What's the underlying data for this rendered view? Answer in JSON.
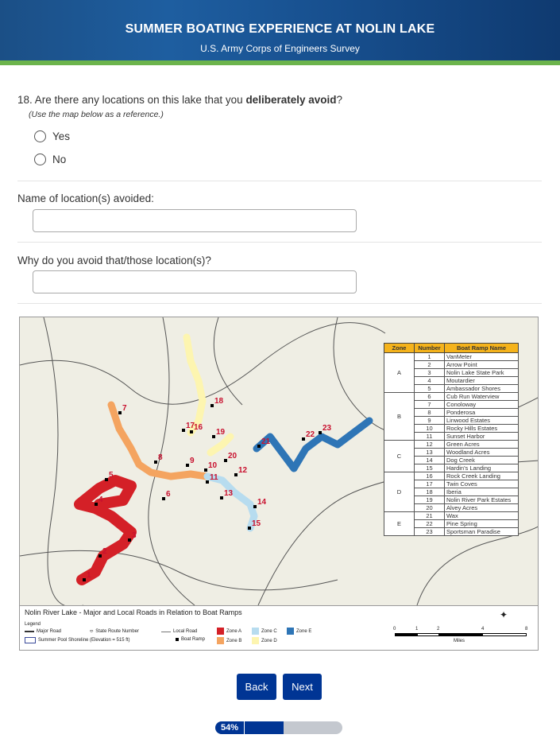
{
  "header": {
    "title": "SUMMER BOATING EXPERIENCE AT NOLIN LAKE",
    "subtitle": "U.S. Army Corps of Engineers Survey"
  },
  "question": {
    "prefix": "18. Are there any locations on this lake that you ",
    "bold": "deliberately avoid",
    "suffix": "?",
    "note": "(Use the map below as a reference.)",
    "options": [
      "Yes",
      "No"
    ]
  },
  "fields": {
    "name_label": "Name of location(s) avoided:",
    "why_label": "Why do you avoid that/those location(s)?",
    "name_value": "",
    "why_value": ""
  },
  "map": {
    "table_headers": [
      "Zone",
      "Number",
      "Boat Ramp Name"
    ],
    "zones": [
      {
        "zone": "A",
        "ramps": [
          [
            "1",
            "VanMeter"
          ],
          [
            "2",
            "Arrow Point"
          ],
          [
            "3",
            "Nolin Lake State Park"
          ],
          [
            "4",
            "Moutardier"
          ],
          [
            "5",
            "Ambassador Shores"
          ]
        ]
      },
      {
        "zone": "B",
        "ramps": [
          [
            "6",
            "Cub Run Waterview"
          ],
          [
            "7",
            "Conoloway"
          ],
          [
            "8",
            "Ponderosa"
          ],
          [
            "9",
            "Linwood Estates"
          ],
          [
            "10",
            "Rocky Hills Estates"
          ],
          [
            "11",
            "Sunset Harbor"
          ]
        ]
      },
      {
        "zone": "C",
        "ramps": [
          [
            "12",
            "Green Acres"
          ],
          [
            "13",
            "Woodland Acres"
          ],
          [
            "14",
            "Dog Creek"
          ],
          [
            "15",
            "Hardin's Landing"
          ]
        ]
      },
      {
        "zone": "D",
        "ramps": [
          [
            "16",
            "Rock Creek Landing"
          ],
          [
            "17",
            "Twin Coves"
          ],
          [
            "18",
            "Iberia"
          ],
          [
            "19",
            "Nolin River Park Estates"
          ],
          [
            "20",
            "Alvey Acres"
          ]
        ]
      },
      {
        "zone": "E",
        "ramps": [
          [
            "21",
            "Wax"
          ],
          [
            "22",
            "Pine Spring"
          ],
          [
            "23",
            "Sportsman Paradise"
          ]
        ]
      }
    ],
    "zone_colors": {
      "A": "#d42027",
      "B": "#f4a460",
      "C": "#b7dcef",
      "D": "#fdf5b0",
      "E": "#2e75b6"
    },
    "legend": {
      "title": "Nolin River Lake - Major and Local Roads in Relation to Boat Ramps",
      "heading": "Legend",
      "major_road": "Major Road",
      "state_route": "State Route Number",
      "local_road": "Local Road",
      "shoreline": "Summer Pool Shoreline (Elevation = 515 ft)",
      "boat_ramp": "Boat Ramp",
      "zone_a": "Zone A",
      "zone_b": "Zone B",
      "zone_c": "Zone C",
      "zone_d": "Zone D",
      "zone_e": "Zone E",
      "scale": [
        "0",
        "1",
        "2",
        "4",
        "8"
      ],
      "scale_unit": "Miles"
    }
  },
  "nav": {
    "back": "Back",
    "next": "Next"
  },
  "progress": {
    "percent": 54,
    "label": "54%"
  }
}
